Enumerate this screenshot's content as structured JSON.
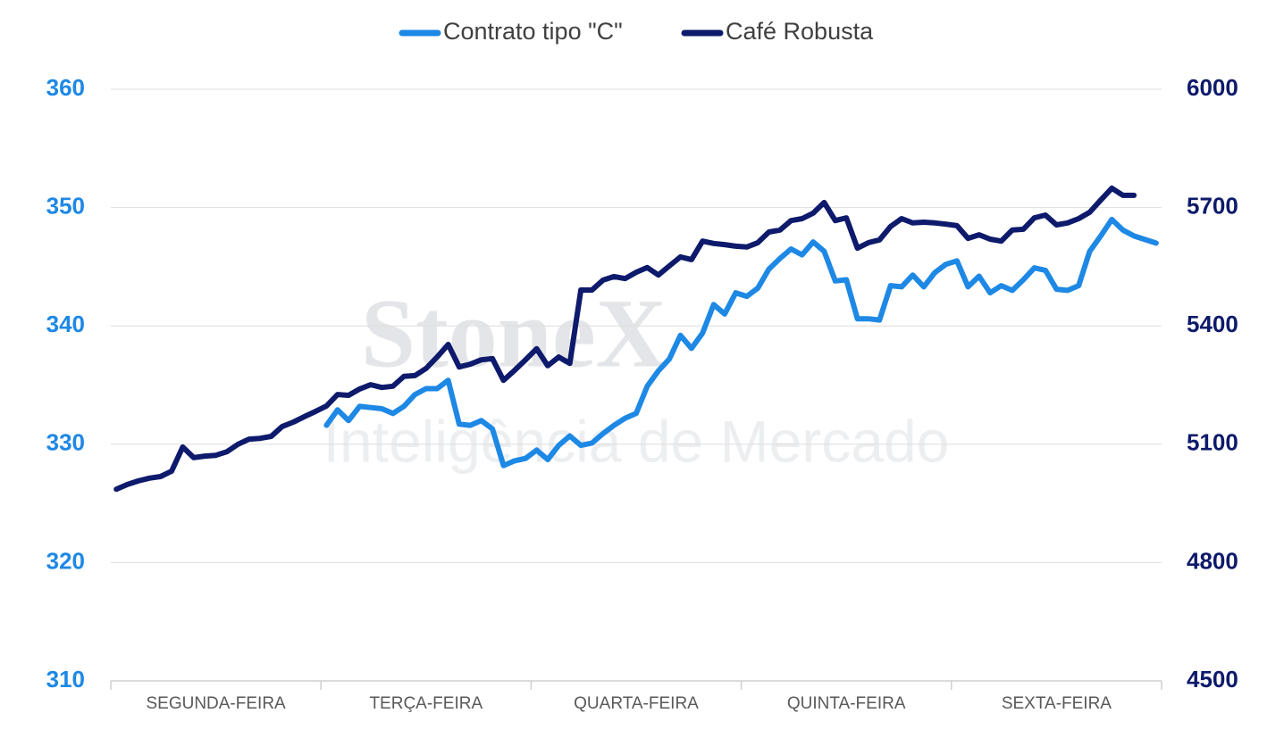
{
  "chart_data": {
    "type": "line",
    "legend": "top",
    "watermark": {
      "brand": "StoneX",
      "tagline": "Inteligência de Mercado"
    },
    "x_labels": [
      "SEGUNDA-FEIRA",
      "TERÇA-FEIRA",
      "QUARTA-FEIRA",
      "QUINTA-FEIRA",
      "SEXTA-FEIRA"
    ],
    "ylim": [
      310,
      360
    ],
    "yticks": [
      310,
      320,
      330,
      340,
      350,
      360
    ],
    "y2lim": [
      4500,
      6000
    ],
    "y2ticks": [
      4500,
      4800,
      5100,
      5400,
      5700,
      6000
    ],
    "grid": true,
    "series": [
      {
        "name": "Contrato tipo \"C\"",
        "color": "#1e88e5",
        "values": [
          null,
          null,
          null,
          null,
          null,
          null,
          null,
          null,
          null,
          null,
          null,
          null,
          null,
          null,
          null,
          null,
          null,
          null,
          null,
          331.6,
          332.9,
          332.0,
          333.2,
          333.1,
          333.0,
          332.6,
          333.2,
          334.2,
          334.7,
          334.7,
          335.4,
          331.7,
          331.6,
          332.0,
          331.3,
          328.2,
          328.6,
          328.8,
          329.5,
          328.7,
          329.9,
          330.7,
          329.9,
          330.1,
          330.9,
          331.6,
          332.2,
          332.6,
          334.9,
          336.2,
          337.2,
          339.2,
          338.1,
          339.4,
          341.8,
          341.0,
          342.8,
          342.5,
          343.2,
          344.8,
          345.7,
          346.5,
          346.0,
          347.1,
          346.3,
          343.8,
          343.9,
          340.6,
          340.6,
          340.5,
          343.4,
          343.3,
          344.3,
          343.3,
          344.5,
          345.2,
          345.5,
          343.3,
          344.2,
          342.8,
          343.4,
          343.0,
          343.9,
          344.9,
          344.7,
          343.1,
          343.0,
          343.4,
          346.3,
          347.6,
          349.0,
          348.1,
          347.6,
          347.3,
          347.0
        ]
      },
      {
        "name": "Café Robusta",
        "color": "#0e1a6b",
        "axis": "y2",
        "values": [
          4986,
          4998,
          5007,
          5014,
          5018,
          5032,
          5093,
          5066,
          5070,
          5072,
          5081,
          5100,
          5113,
          5115,
          5120,
          5145,
          5156,
          5170,
          5183,
          5197,
          5226,
          5224,
          5240,
          5251,
          5244,
          5247,
          5272,
          5274,
          5292,
          5321,
          5353,
          5296,
          5303,
          5314,
          5317,
          5262,
          5287,
          5314,
          5342,
          5299,
          5321,
          5305,
          5491,
          5491,
          5516,
          5525,
          5520,
          5536,
          5548,
          5529,
          5552,
          5575,
          5568,
          5615,
          5609,
          5606,
          5602,
          5600,
          5611,
          5638,
          5643,
          5667,
          5672,
          5686,
          5713,
          5667,
          5674,
          5597,
          5611,
          5618,
          5652,
          5672,
          5661,
          5663,
          5661,
          5658,
          5654,
          5622,
          5631,
          5620,
          5615,
          5643,
          5645,
          5674,
          5681,
          5656,
          5661,
          5672,
          5688,
          5719,
          5749,
          5731,
          5731,
          null,
          null
        ]
      }
    ]
  }
}
